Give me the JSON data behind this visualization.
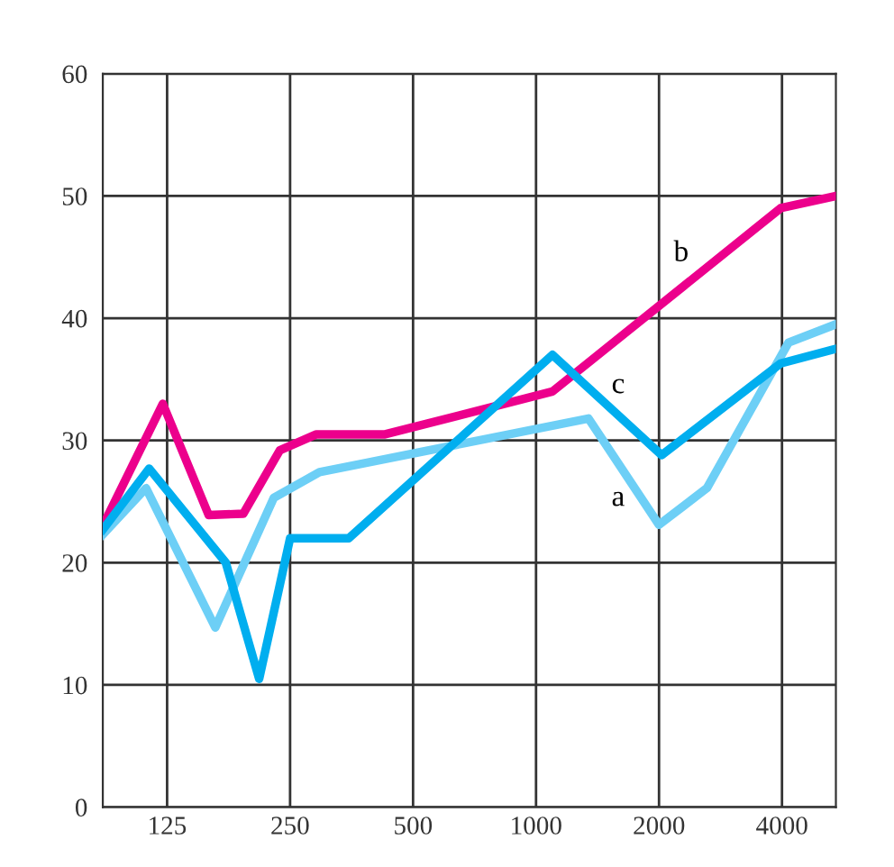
{
  "chart_data": {
    "type": "line",
    "log": "x",
    "grid": true,
    "legend": false,
    "marker": "none",
    "line_style": "solid",
    "xlim": [
      87,
      5420
    ],
    "xticks": [
      125,
      250,
      500,
      1000,
      2000,
      4000
    ],
    "ylim": [
      0,
      60
    ],
    "yticks": [
      0,
      10,
      20,
      30,
      40,
      50,
      60
    ],
    "series": [
      {
        "name": "a",
        "color": "#6dcff6",
        "x": [
          87,
          111,
          164,
          228,
          295,
          1344,
          2000,
          2620,
          4150,
          5420
        ],
        "values": [
          22.3,
          26.1,
          14.7,
          25.3,
          27.4,
          31.8,
          23.1,
          26.1,
          38.0,
          39.5
        ]
      },
      {
        "name": "b",
        "color": "#ec008c",
        "x": [
          87,
          122,
          158,
          192,
          236,
          290,
          427,
          1097,
          3970,
          5420
        ],
        "values": [
          23.0,
          33.0,
          23.9,
          24.0,
          29.2,
          30.5,
          30.5,
          34.0,
          49.0,
          50.0
        ]
      },
      {
        "name": "c",
        "color": "#00aeef",
        "x": [
          87,
          113,
          174,
          210,
          250,
          348,
          1097,
          2030,
          3970,
          5420
        ],
        "values": [
          22.7,
          27.7,
          20.0,
          10.5,
          22.0,
          22.0,
          37.0,
          28.8,
          36.3,
          37.5
        ]
      }
    ]
  }
}
